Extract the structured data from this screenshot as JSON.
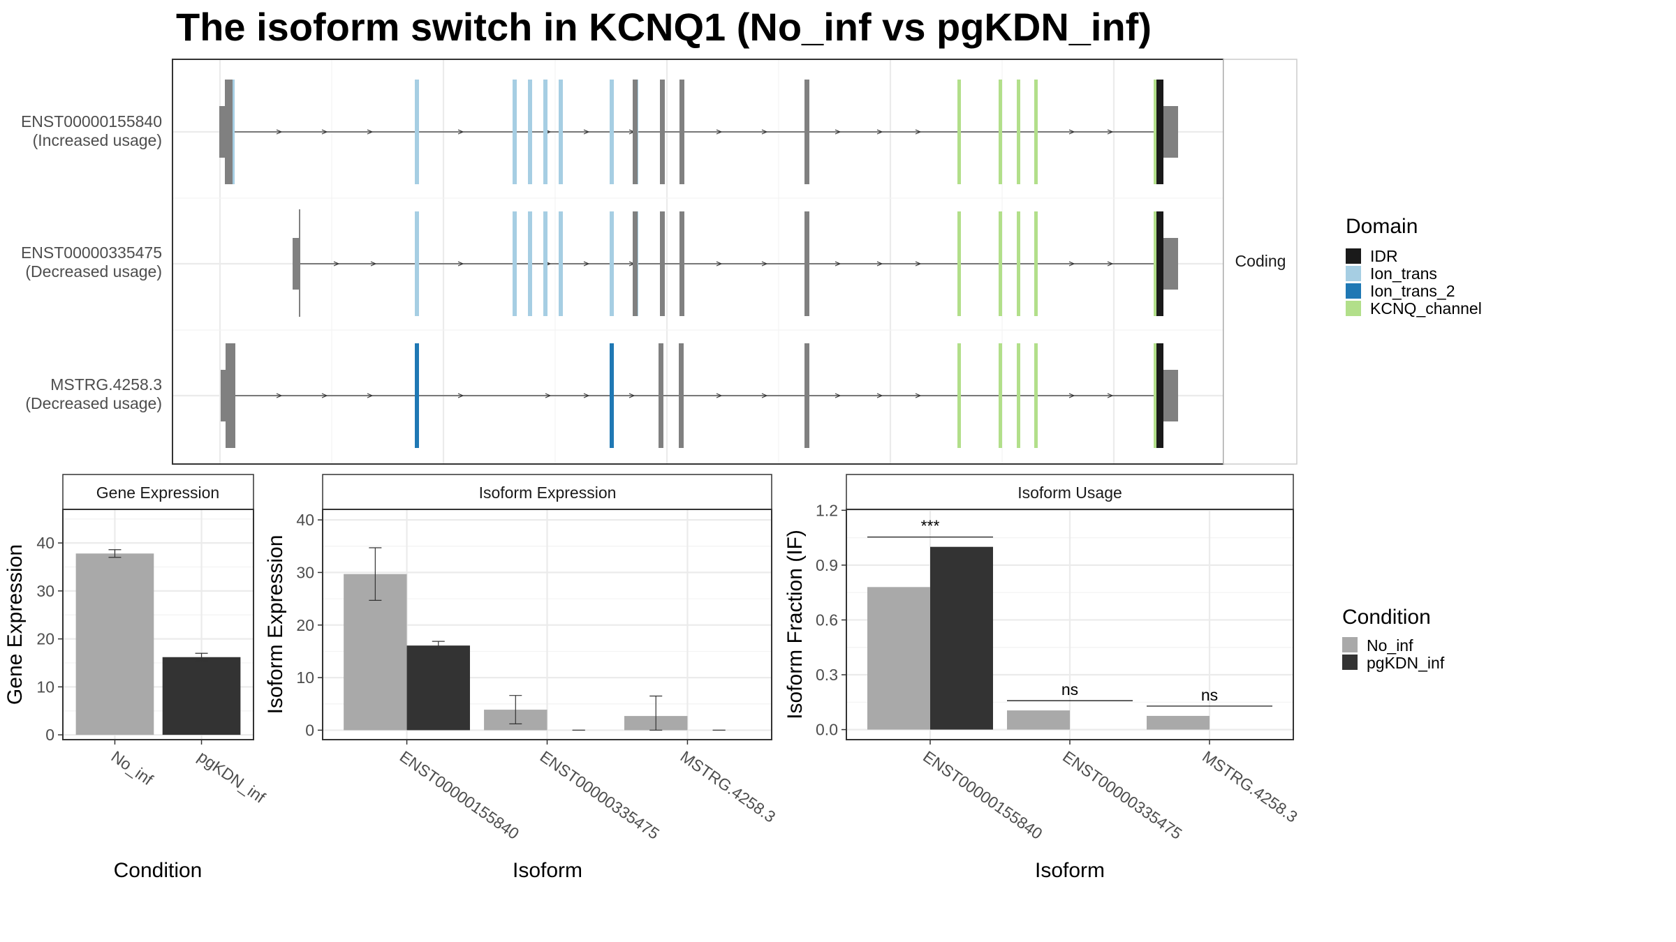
{
  "title": "The isoform switch in KCNQ1 (No_inf vs pgKDN_inf)",
  "colors": {
    "No_inf": "#a9a9a9",
    "pgKDN_inf": "#333333",
    "IDR": "#1a1a1a",
    "Ion_trans": "#a6cee3",
    "Ion_trans_2": "#1f78b4",
    "KCNQ_channel": "#b2df8a",
    "exon": "#808080",
    "grid": "#ebebeb",
    "panel_border": "#333333"
  },
  "chart_data": [
    {
      "type": "other",
      "name": "transcript structure",
      "facet_label": "Coding",
      "transcripts": [
        {
          "id": "ENST00000155840",
          "usage": "(Increased usage)"
        },
        {
          "id": "ENST00000335475",
          "usage": "(Decreased usage)"
        },
        {
          "id": "MSTRG.4258.3",
          "usage": "(Decreased usage)"
        }
      ],
      "legend": {
        "title": "Domain",
        "entries": [
          "IDR",
          "Ion_trans",
          "Ion_trans_2",
          "KCNQ_channel"
        ]
      }
    },
    {
      "type": "bar",
      "strip": "Gene Expression",
      "xlabel": "Condition",
      "ylabel": "Gene Expression",
      "categories": [
        "No_inf",
        "pgKDN_inf"
      ],
      "values": [
        37.8,
        16.2
      ],
      "errors": [
        [
          37.0,
          38.6
        ],
        [
          15.4,
          17.0
        ]
      ],
      "ylim": [
        -1,
        47
      ],
      "yticks": [
        "0",
        "10",
        "20",
        "30",
        "40"
      ]
    },
    {
      "type": "bar",
      "strip": "Isoform Expression",
      "xlabel": "Isoform",
      "ylabel": "Isoform Expression",
      "categories": [
        "ENST00000155840",
        "ENST00000335475",
        "MSTRG.4258.3"
      ],
      "series": [
        {
          "name": "No_inf",
          "values": [
            29.7,
            3.9,
            2.7
          ],
          "errors": [
            [
              24.7,
              34.7
            ],
            [
              1.2,
              6.6
            ],
            [
              0.0,
              6.5
            ]
          ]
        },
        {
          "name": "pgKDN_inf",
          "values": [
            16.1,
            0.0,
            0.0
          ],
          "errors": [
            [
              15.4,
              16.9
            ],
            [
              0.0,
              0.0
            ],
            [
              0.0,
              0.0
            ]
          ]
        }
      ],
      "ylim": [
        -1.8,
        42
      ],
      "yticks": [
        "0",
        "10",
        "20",
        "30",
        "40"
      ]
    },
    {
      "type": "bar",
      "strip": "Isoform Usage",
      "xlabel": "Isoform",
      "ylabel": "Isoform Fraction (IF)",
      "categories": [
        "ENST00000155840",
        "ENST00000335475",
        "MSTRG.4258.3"
      ],
      "series": [
        {
          "name": "No_inf",
          "values": [
            0.78,
            0.105,
            0.075
          ]
        },
        {
          "name": "pgKDN_inf",
          "values": [
            1.0,
            0.0,
            0.0
          ]
        }
      ],
      "significance": [
        "***",
        "ns",
        "ns"
      ],
      "ylim": [
        -0.055,
        1.205
      ],
      "yticks": [
        "0.0",
        "0.3",
        "0.6",
        "0.9",
        "1.2"
      ],
      "legend": {
        "title": "Condition",
        "entries": [
          "No_inf",
          "pgKDN_inf"
        ]
      }
    }
  ]
}
